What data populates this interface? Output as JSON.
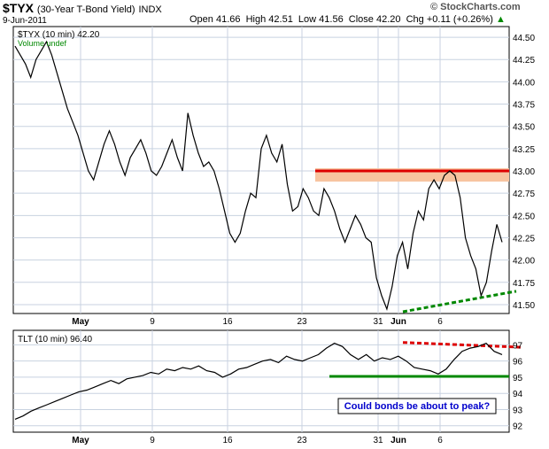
{
  "header": {
    "symbol": "$TYX",
    "name": "(30-Year T-Bond Yield)",
    "exchange": "INDX",
    "date": "9-Jun-2011",
    "stats": "Open 41.66  High 42.51  Low 41.56  Close 42.20  Chg +0.11 (+0.26%)",
    "stats_arrow": "▲",
    "brand": "© StockCharts.com"
  },
  "colors": {
    "price_line": "#000000",
    "resistance": "#dd0000",
    "resistance_band": "#f7c4a0",
    "support": "#008800",
    "gridline": "#c8d2e0",
    "panel_border": "#000000",
    "background": "#ffffff",
    "annotation_text": "#0000cc"
  },
  "chart_data": [
    {
      "type": "line",
      "legend": "$TYX (10 min) 42.20",
      "sublegend": "Volume undef",
      "x_ticks": [
        "May",
        "9",
        "16",
        "23",
        "31",
        "Jun",
        "6"
      ],
      "y_ticks": [
        "44.50",
        "44.25",
        "44.00",
        "43.75",
        "43.50",
        "43.25",
        "43.00",
        "42.75",
        "42.50",
        "42.25",
        "42.00",
        "41.75",
        "41.50"
      ],
      "ylim": [
        41.4,
        44.62
      ],
      "grid": true,
      "series": [
        {
          "values": [
            44.4,
            44.3,
            44.2,
            44.05,
            44.25,
            44.35,
            44.45,
            44.3,
            44.1,
            43.9,
            43.7,
            43.55,
            43.4,
            43.2,
            43.0,
            42.9,
            43.1,
            43.3,
            43.45,
            43.3,
            43.1,
            42.95,
            43.15,
            43.25,
            43.35,
            43.2,
            43.0,
            42.95,
            43.05,
            43.2,
            43.35,
            43.15,
            43.0,
            43.65,
            43.4,
            43.2,
            43.05,
            43.1,
            43.0,
            42.8,
            42.55,
            42.3,
            42.2,
            42.3,
            42.55,
            42.75,
            42.7,
            43.25,
            43.4,
            43.2,
            43.1,
            43.3,
            42.85,
            42.55,
            42.6,
            42.8,
            42.7,
            42.55,
            42.5,
            42.8,
            42.7,
            42.55,
            42.35,
            42.2,
            42.35,
            42.5,
            42.4,
            42.25,
            42.2,
            41.8,
            41.6,
            41.45,
            41.7,
            42.05,
            42.2,
            41.9,
            42.3,
            42.55,
            42.45,
            42.8,
            42.9,
            42.8,
            42.95,
            43.0,
            42.95,
            42.7,
            42.25,
            42.05,
            41.9,
            41.6,
            41.75,
            42.1,
            42.4,
            42.2
          ]
        }
      ],
      "annotations": {
        "resistance_level": 43.0,
        "resistance_band": [
          42.88,
          43.03
        ],
        "support_trend": [
          41.42,
          41.65
        ]
      }
    },
    {
      "type": "line",
      "legend": "TLT (10 min) 96.40",
      "x_ticks": [
        "May",
        "9",
        "16",
        "23",
        "31",
        "Jun",
        "6"
      ],
      "y_ticks": [
        "97",
        "96",
        "95",
        "94",
        "93",
        "92"
      ],
      "ylim": [
        91.6,
        97.9
      ],
      "grid": true,
      "series": [
        {
          "values": [
            92.4,
            92.6,
            92.9,
            93.1,
            93.3,
            93.5,
            93.7,
            93.9,
            94.1,
            94.2,
            94.4,
            94.6,
            94.8,
            94.6,
            94.9,
            95.0,
            95.1,
            95.3,
            95.2,
            95.5,
            95.4,
            95.6,
            95.5,
            95.7,
            95.4,
            95.3,
            95.0,
            95.2,
            95.5,
            95.6,
            95.8,
            96.0,
            96.1,
            95.9,
            96.3,
            96.1,
            96.0,
            96.2,
            96.4,
            96.8,
            97.1,
            96.9,
            96.4,
            96.1,
            96.4,
            96.0,
            96.2,
            96.1,
            96.3,
            96.0,
            95.6,
            95.5,
            95.4,
            95.2,
            95.5,
            96.1,
            96.6,
            96.8,
            96.9,
            97.1,
            96.6,
            96.4
          ]
        }
      ],
      "annotations": {
        "resistance_trend": [
          97.15,
          96.85
        ],
        "support_level": 95.05,
        "callout": "Could bonds be about to peak?"
      }
    }
  ]
}
